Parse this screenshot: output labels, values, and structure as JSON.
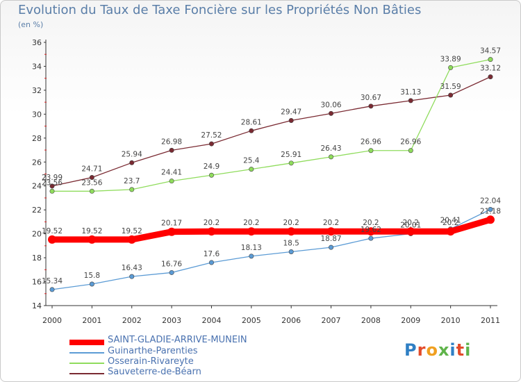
{
  "chart_data": {
    "type": "line",
    "title": "Evolution du Taux de Taxe Foncière sur les Propriétés Non Bâties",
    "subtitle": "(en %)",
    "x": [
      "2000",
      "2001",
      "2002",
      "2003",
      "2004",
      "2005",
      "2006",
      "2007",
      "2008",
      "2009",
      "2010",
      "2011"
    ],
    "yticks": [
      "14",
      "16",
      "18",
      "20",
      "22",
      "24",
      "26",
      "28",
      "30",
      "32",
      "34",
      "36"
    ],
    "ylim": [
      14,
      36
    ],
    "grid": false,
    "legend_position": "bottom-left",
    "series": [
      {
        "name": "SAINT-GLADIE-ARRIVE-MUNEIN",
        "color": "#ff0000",
        "values": [
          19.52,
          19.52,
          19.52,
          20.17,
          20.2,
          20.2,
          20.2,
          20.2,
          20.2,
          20.2,
          20.2,
          21.18
        ],
        "labels": [
          "19.52",
          "19.52",
          "19.52",
          "20.17",
          "20.2",
          "20.2",
          "20.2",
          "20.2",
          "20.2",
          "20.2",
          "20.2",
          "21.18"
        ]
      },
      {
        "name": "Guinarthe-Parenties",
        "color": "#5b9bd5",
        "values": [
          15.34,
          15.8,
          16.43,
          16.76,
          17.6,
          18.13,
          18.5,
          18.87,
          19.62,
          20.01,
          20.41,
          22.04
        ],
        "labels": [
          "15.34",
          "15.8",
          "16.43",
          "16.76",
          "17.6",
          "18.13",
          "18.5",
          "18.87",
          "19.62",
          "20.01",
          "20.41",
          "22.04"
        ]
      },
      {
        "name": "Osserain-Rivareyte",
        "color": "#8fdc5c",
        "values": [
          23.56,
          23.56,
          23.7,
          24.41,
          24.9,
          25.4,
          25.91,
          26.43,
          26.96,
          26.96,
          33.89,
          34.57
        ],
        "labels": [
          "23.56",
          "23.56",
          "23.7",
          "24.41",
          "24.9",
          "25.4",
          "25.91",
          "26.43",
          "26.96",
          "26.96",
          "33.89",
          "34.57"
        ]
      },
      {
        "name": "Sauveterre-de-Béarn",
        "color": "#7a2a32",
        "values": [
          23.99,
          24.71,
          25.94,
          26.98,
          27.52,
          28.61,
          29.47,
          30.06,
          30.67,
          31.13,
          31.59,
          33.12
        ],
        "labels": [
          "23.99",
          "24.71",
          "25.94",
          "26.98",
          "27.52",
          "28.61",
          "29.47",
          "30.06",
          "30.67",
          "31.13",
          "31.59",
          "33.12"
        ]
      }
    ]
  },
  "brand": {
    "letters": [
      "P",
      "r",
      "o",
      "x",
      "i",
      "t",
      "i"
    ]
  }
}
